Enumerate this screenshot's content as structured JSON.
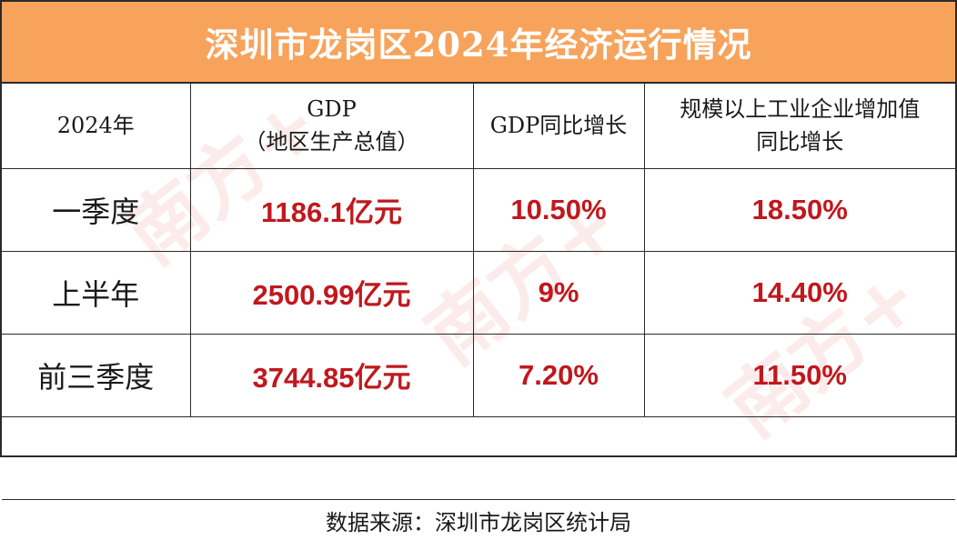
{
  "title": "深圳市龙岗区2024年经济运行情况",
  "header": {
    "period": "2024年",
    "gdp_line1": "GDP",
    "gdp_line2": "（地区生产总值）",
    "gdp_growth": "GDP同比增长",
    "industry_line1": "规模以上工业企业增加值",
    "industry_line2": "同比增长"
  },
  "rows": [
    {
      "period": "一季度",
      "gdp": "1186.1亿元",
      "gdp_growth": "10.50%",
      "industry_growth": "18.50%"
    },
    {
      "period": "上半年",
      "gdp": "2500.99亿元",
      "gdp_growth": "9%",
      "industry_growth": "14.40%"
    },
    {
      "period": "前三季度",
      "gdp": "3744.85亿元",
      "gdp_growth": "7.20%",
      "industry_growth": "11.50%"
    }
  ],
  "footer": "数据来源：深圳市龙岗区统计局",
  "watermark": "南方+",
  "colors": {
    "title_bar": "#f7a35c",
    "value_text": "#c0181d",
    "border": "#2a2a2a"
  }
}
